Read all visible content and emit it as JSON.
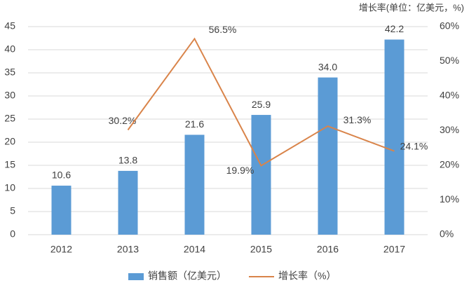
{
  "chart_data": {
    "type": "bar",
    "title": "增长率(单位：亿美元，%)",
    "categories": [
      "2012",
      "2013",
      "2014",
      "2015",
      "2016",
      "2017"
    ],
    "series": [
      {
        "name": "销售额（亿美元）",
        "type": "bar",
        "color": "#5b9bd5",
        "values": [
          10.6,
          13.8,
          21.6,
          25.9,
          34.0,
          42.2
        ],
        "value_labels": [
          "10.6",
          "13.8",
          "21.6",
          "25.9",
          "34.0",
          "42.2"
        ]
      },
      {
        "name": "增长率（%）",
        "type": "line",
        "axis": "y2",
        "color": "#d9844a",
        "values": [
          null,
          30.2,
          56.5,
          19.9,
          31.3,
          24.1
        ],
        "value_labels": [
          null,
          "30.2%",
          "56.5%",
          "19.9%",
          "31.3%",
          "24.1%"
        ]
      }
    ],
    "ylim": [
      0,
      45
    ],
    "yticks": [
      0,
      5,
      10,
      15,
      20,
      25,
      30,
      35,
      40,
      45
    ],
    "y2lim": [
      0,
      60
    ],
    "y2ticks": [
      {
        "value": 0,
        "label": "0%"
      },
      {
        "value": 10,
        "label": "10%"
      },
      {
        "value": 20,
        "label": "20%"
      },
      {
        "value": 30,
        "label": "30%"
      },
      {
        "value": 40,
        "label": "40%"
      },
      {
        "value": 50,
        "label": "50%"
      },
      {
        "value": 60,
        "label": "60%"
      }
    ],
    "grid": true,
    "legend": "bottom"
  }
}
